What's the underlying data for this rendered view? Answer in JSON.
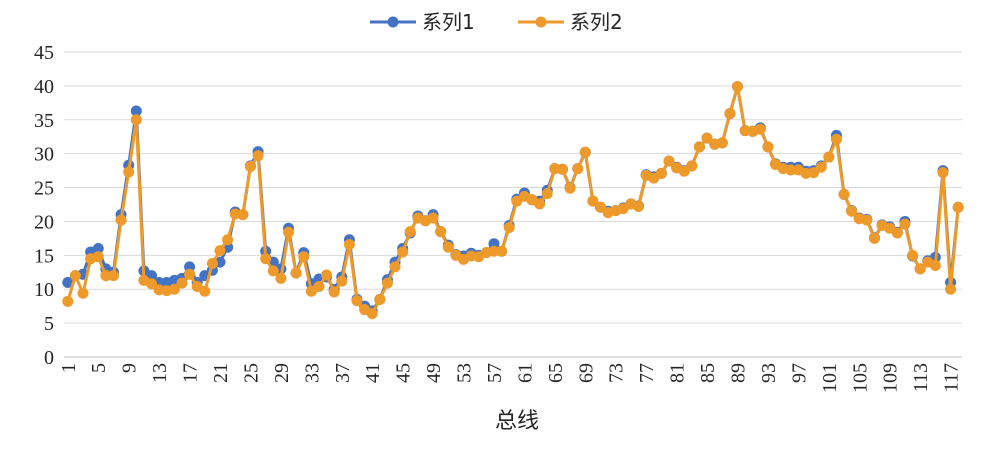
{
  "chart_data": {
    "type": "line",
    "xlabel": "总线",
    "ylabel": "",
    "ylim": [
      0,
      45
    ],
    "yticks": [
      0,
      5,
      10,
      15,
      20,
      25,
      30,
      35,
      40,
      45
    ],
    "x": [
      1,
      2,
      3,
      4,
      5,
      6,
      7,
      8,
      9,
      10,
      11,
      12,
      13,
      14,
      15,
      16,
      17,
      18,
      19,
      20,
      21,
      22,
      23,
      24,
      25,
      26,
      27,
      28,
      29,
      30,
      31,
      32,
      33,
      34,
      35,
      36,
      37,
      38,
      39,
      40,
      41,
      42,
      43,
      44,
      45,
      46,
      47,
      48,
      49,
      50,
      51,
      52,
      53,
      54,
      55,
      56,
      57,
      58,
      59,
      60,
      61,
      62,
      63,
      64,
      65,
      66,
      67,
      68,
      69,
      70,
      71,
      72,
      73,
      74,
      75,
      76,
      77,
      78,
      79,
      80,
      81,
      82,
      83,
      84,
      85,
      86,
      87,
      88,
      89,
      90,
      91,
      92,
      93,
      94,
      95,
      96,
      97,
      98,
      99,
      100,
      101,
      102,
      103,
      104,
      105,
      106,
      107,
      108,
      109,
      110,
      111,
      112,
      113,
      114,
      115,
      116,
      117,
      118
    ],
    "xticks": [
      1,
      5,
      9,
      13,
      17,
      21,
      25,
      29,
      33,
      37,
      41,
      45,
      49,
      53,
      57,
      61,
      65,
      69,
      73,
      77,
      81,
      85,
      89,
      93,
      97,
      101,
      105,
      109,
      113,
      117
    ],
    "grid": "horizontal",
    "legend_position": "top",
    "series": [
      {
        "name": "系列1",
        "color": "#4472C4",
        "values": [
          11.0,
          12.0,
          12.2,
          15.5,
          16.0,
          13.0,
          12.5,
          21.0,
          28.3,
          36.3,
          12.7,
          12.0,
          11.0,
          11.0,
          11.3,
          11.6,
          13.3,
          11.0,
          12.0,
          12.8,
          14.0,
          16.2,
          21.4,
          21.0,
          28.2,
          30.3,
          15.6,
          14.0,
          13.0,
          19.0,
          12.4,
          15.4,
          10.8,
          11.5,
          11.8,
          10.0,
          11.8,
          17.3,
          8.5,
          7.5,
          6.8,
          8.5,
          11.4,
          14.0,
          16.0,
          18.3,
          20.8,
          20.1,
          21.0,
          18.5,
          16.5,
          15.1,
          14.9,
          15.3,
          15.0,
          15.4,
          16.7,
          15.6,
          19.4,
          23.3,
          24.2,
          23.2,
          23.0,
          24.6,
          27.8,
          27.7,
          25.0,
          27.8,
          30.2,
          23.0,
          22.1,
          21.5,
          21.6,
          22.0,
          22.6,
          22.3,
          26.9,
          26.6,
          27.1,
          28.9,
          28.0,
          27.5,
          28.2,
          31.0,
          32.3,
          31.4,
          31.6,
          35.9,
          39.9,
          33.4,
          33.3,
          33.8,
          31.0,
          28.5,
          28.0,
          28.0,
          28.0,
          27.4,
          27.5,
          28.2,
          29.5,
          32.7,
          24.0,
          21.6,
          20.5,
          20.3,
          17.6,
          19.5,
          19.2,
          18.4,
          20.0,
          14.9,
          13.0,
          14.2,
          14.7,
          27.5,
          11.0,
          22.1
        ]
      },
      {
        "name": "系列2",
        "color": "#ED9A2B",
        "values": [
          8.2,
          12.0,
          9.4,
          14.5,
          14.8,
          12.0,
          12.0,
          20.2,
          27.3,
          35.0,
          11.3,
          10.8,
          9.9,
          9.8,
          10.0,
          10.9,
          12.2,
          10.4,
          9.7,
          13.8,
          15.7,
          17.3,
          21.1,
          21.0,
          28.1,
          29.7,
          14.5,
          12.7,
          11.6,
          18.4,
          12.4,
          14.8,
          9.7,
          10.4,
          12.1,
          9.6,
          11.2,
          16.6,
          8.3,
          7.0,
          6.4,
          8.5,
          10.9,
          13.3,
          15.5,
          18.5,
          20.5,
          20.1,
          20.5,
          18.5,
          16.2,
          15.0,
          14.4,
          14.9,
          14.8,
          15.4,
          15.6,
          15.6,
          19.1,
          23.0,
          23.7,
          23.2,
          22.6,
          24.1,
          27.8,
          27.7,
          24.9,
          27.8,
          30.2,
          23.0,
          22.1,
          21.3,
          21.6,
          21.9,
          22.6,
          22.2,
          26.8,
          26.4,
          27.1,
          28.9,
          27.9,
          27.4,
          28.2,
          31.0,
          32.3,
          31.4,
          31.6,
          35.9,
          39.9,
          33.4,
          33.3,
          33.6,
          31.0,
          28.4,
          27.8,
          27.6,
          27.6,
          27.1,
          27.2,
          28.0,
          29.5,
          32.1,
          24.0,
          21.5,
          20.4,
          20.2,
          17.5,
          19.4,
          19.0,
          18.3,
          19.6,
          15.0,
          13.0,
          14.0,
          13.5,
          27.2,
          10.0,
          22.1
        ]
      }
    ]
  }
}
